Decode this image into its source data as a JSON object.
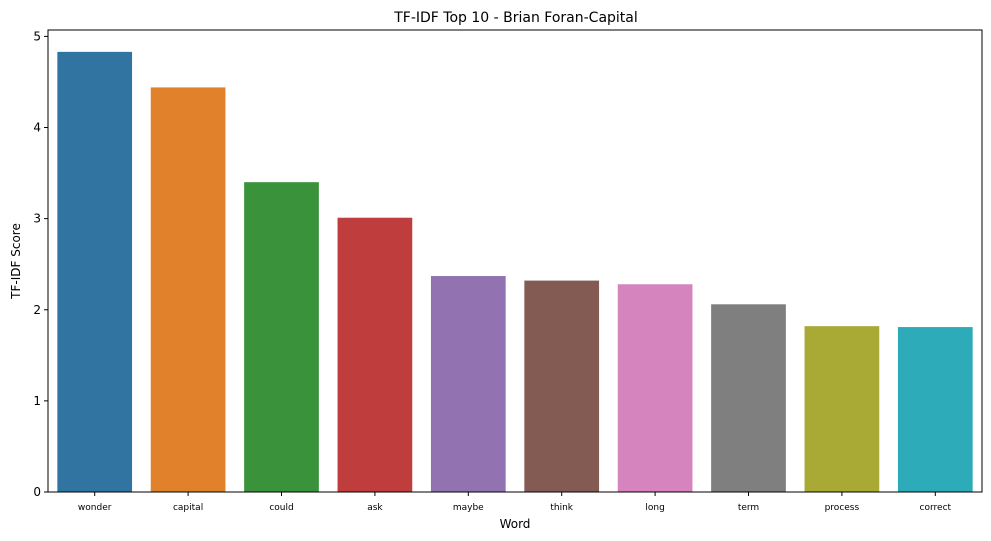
{
  "chart_data": {
    "type": "bar",
    "title": "TF-IDF Top 10 - Brian Foran-Capital",
    "xlabel": "Word",
    "ylabel": "TF-IDF Score",
    "categories": [
      "wonder",
      "capital",
      "could",
      "ask",
      "maybe",
      "think",
      "long",
      "term",
      "process",
      "correct"
    ],
    "values": [
      4.83,
      4.44,
      3.4,
      3.01,
      2.37,
      2.32,
      2.28,
      2.06,
      1.82,
      1.81
    ],
    "colors": [
      "#3274a1",
      "#e1812c",
      "#3a923a",
      "#c03d3e",
      "#9372b2",
      "#845b53",
      "#d684bd",
      "#7f7f7f",
      "#a9aa35",
      "#2eabb8"
    ],
    "ylim": [
      0,
      5.07
    ],
    "yticks": [
      0,
      1,
      2,
      3,
      4,
      5
    ],
    "grid": false,
    "legend": "none"
  }
}
